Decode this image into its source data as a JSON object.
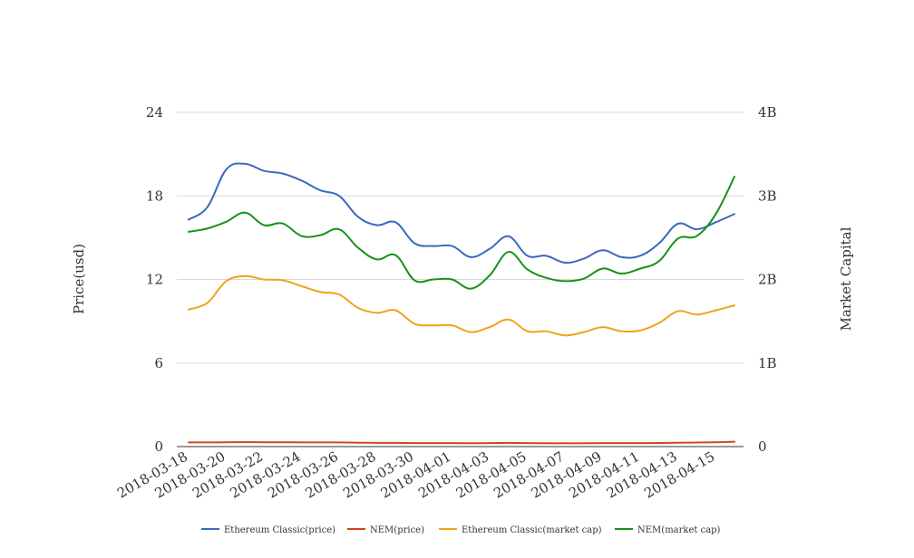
{
  "chart_data": {
    "type": "line",
    "x": [
      "2018-03-18",
      "2018-03-19",
      "2018-03-20",
      "2018-03-21",
      "2018-03-22",
      "2018-03-23",
      "2018-03-24",
      "2018-03-25",
      "2018-03-26",
      "2018-03-27",
      "2018-03-28",
      "2018-03-29",
      "2018-03-30",
      "2018-03-31",
      "2018-04-01",
      "2018-04-02",
      "2018-04-03",
      "2018-04-04",
      "2018-04-05",
      "2018-04-06",
      "2018-04-07",
      "2018-04-08",
      "2018-04-09",
      "2018-04-10",
      "2018-04-11",
      "2018-04-12",
      "2018-04-13",
      "2018-04-14",
      "2018-04-15",
      "2018-04-16"
    ],
    "x_tick_labels": [
      "2018-03-18",
      "2018-03-20",
      "2018-03-22",
      "2018-03-24",
      "2018-03-26",
      "2018-03-28",
      "2018-03-30",
      "2018-04-01",
      "2018-04-03",
      "2018-04-05",
      "2018-04-07",
      "2018-04-09",
      "2018-04-11",
      "2018-04-13",
      "2018-04-15"
    ],
    "y_left": {
      "label": "Price(usd)",
      "range": [
        0,
        24
      ],
      "ticks": [
        "0",
        "6",
        "12",
        "18",
        "24"
      ]
    },
    "y_right": {
      "label": "Market Capital",
      "range": [
        0,
        4000000000
      ],
      "ticks": [
        "0",
        "1B",
        "2B",
        "3B",
        "4B"
      ]
    },
    "grid": true,
    "legend_position": "bottom",
    "series": [
      {
        "name": "Ethereum Classic(price)",
        "axis": "left",
        "color": "#3b68c0",
        "values": [
          16.3,
          17.2,
          19.9,
          20.3,
          19.8,
          19.6,
          19.1,
          18.4,
          18.0,
          16.5,
          15.9,
          16.1,
          14.6,
          14.4,
          14.4,
          13.6,
          14.2,
          15.1,
          13.7,
          13.7,
          13.2,
          13.5,
          14.1,
          13.6,
          13.7,
          14.6,
          16.0,
          15.6,
          16.1,
          16.7
        ]
      },
      {
        "name": "NEM(price)",
        "axis": "left",
        "color": "#d0451f",
        "values": [
          0.3,
          0.3,
          0.31,
          0.32,
          0.31,
          0.31,
          0.3,
          0.3,
          0.3,
          0.28,
          0.27,
          0.27,
          0.25,
          0.25,
          0.25,
          0.24,
          0.25,
          0.27,
          0.25,
          0.24,
          0.24,
          0.24,
          0.25,
          0.25,
          0.25,
          0.26,
          0.28,
          0.29,
          0.31,
          0.35
        ]
      },
      {
        "name": "Ethereum Classic(market cap)",
        "axis": "right",
        "color": "#f1a21a",
        "values": [
          1640000000,
          1720000000,
          1980000000,
          2040000000,
          2000000000,
          1990000000,
          1920000000,
          1850000000,
          1820000000,
          1660000000,
          1600000000,
          1630000000,
          1470000000,
          1450000000,
          1450000000,
          1370000000,
          1430000000,
          1520000000,
          1380000000,
          1380000000,
          1330000000,
          1370000000,
          1430000000,
          1380000000,
          1390000000,
          1480000000,
          1620000000,
          1580000000,
          1630000000,
          1690000000
        ]
      },
      {
        "name": "NEM(market cap)",
        "axis": "right",
        "color": "#179118",
        "values": [
          2570000000,
          2610000000,
          2690000000,
          2800000000,
          2650000000,
          2670000000,
          2520000000,
          2530000000,
          2600000000,
          2380000000,
          2240000000,
          2290000000,
          1990000000,
          2000000000,
          2000000000,
          1890000000,
          2050000000,
          2330000000,
          2120000000,
          2020000000,
          1980000000,
          2010000000,
          2130000000,
          2070000000,
          2130000000,
          2220000000,
          2490000000,
          2520000000,
          2780000000,
          3230000000
        ]
      }
    ]
  }
}
